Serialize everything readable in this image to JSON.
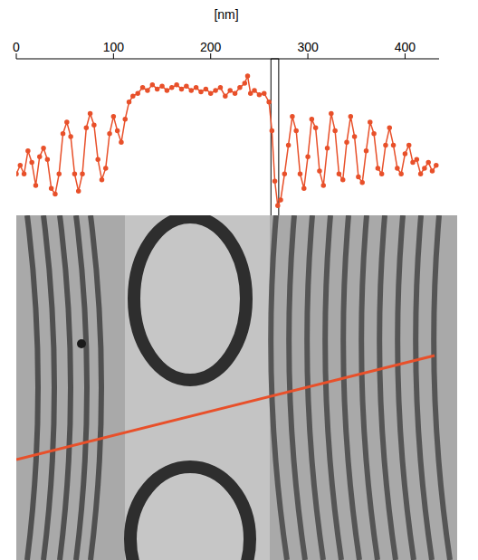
{
  "chart_data": {
    "type": "line",
    "x_label": "[nm]",
    "x": [
      0,
      4,
      8,
      12,
      16,
      20,
      24,
      28,
      32,
      36,
      40,
      44,
      48,
      52,
      56,
      60,
      64,
      68,
      72,
      76,
      80,
      84,
      88,
      92,
      96,
      100,
      104,
      108,
      112,
      116,
      120,
      125,
      130,
      135,
      140,
      145,
      150,
      155,
      160,
      165,
      170,
      175,
      180,
      185,
      190,
      195,
      200,
      205,
      210,
      215,
      220,
      225,
      230,
      235,
      238,
      241,
      245,
      250,
      255,
      260,
      263,
      266,
      269,
      272,
      276,
      280,
      284,
      288,
      292,
      296,
      300,
      304,
      308,
      312,
      316,
      320,
      324,
      328,
      332,
      336,
      340,
      344,
      348,
      352,
      356,
      360,
      364,
      368,
      372,
      376,
      380,
      384,
      388,
      392,
      396,
      400,
      404,
      408,
      412,
      416,
      420,
      424,
      428,
      432
    ],
    "values": [
      30,
      36,
      30,
      46,
      38,
      22,
      42,
      48,
      40,
      20,
      16,
      30,
      58,
      66,
      56,
      30,
      18,
      30,
      62,
      72,
      64,
      40,
      26,
      34,
      58,
      70,
      60,
      52,
      68,
      80,
      84,
      86,
      90,
      88,
      92,
      89,
      91,
      88,
      90,
      92,
      89,
      91,
      88,
      90,
      87,
      89,
      86,
      88,
      90,
      84,
      88,
      86,
      90,
      93,
      98,
      86,
      88,
      85,
      86,
      80,
      60,
      25,
      8,
      12,
      30,
      50,
      70,
      60,
      30,
      20,
      42,
      68,
      62,
      32,
      22,
      48,
      72,
      60,
      30,
      26,
      52,
      70,
      56,
      28,
      24,
      46,
      66,
      58,
      34,
      30,
      50,
      62,
      50,
      34,
      30,
      44,
      50,
      38,
      40,
      30,
      34,
      38,
      32,
      36
    ],
    "color": "#e8502a",
    "marker": "circle",
    "xlim": [
      0,
      435
    ],
    "xticks": [
      0,
      100,
      200,
      300,
      400
    ],
    "ylim": [
      0,
      110
    ],
    "tick_labels": "x",
    "grid": false,
    "marked_range": [
      262,
      270
    ]
  }
}
